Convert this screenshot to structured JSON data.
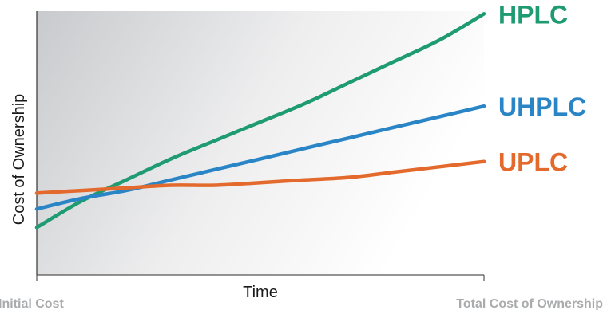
{
  "chart_data": {
    "type": "line",
    "title": "",
    "xlabel": "Time",
    "ylabel": "Cost of Ownership",
    "x_tick_labels": [
      "Initial Cost",
      "Total Cost of Ownership"
    ],
    "x": [
      0,
      0.1,
      0.2,
      0.3,
      0.4,
      0.5,
      0.6,
      0.7,
      0.8,
      0.9,
      1.0
    ],
    "xlim": [
      0,
      1
    ],
    "ylim": [
      0,
      1
    ],
    "y_ticks_shown": false,
    "grid": false,
    "legend": "series labels at right end of each line",
    "background": "vertical gradient: grey at left fading to white at right",
    "series": [
      {
        "name": "HPLC",
        "color": "#1f9b72",
        "values": [
          0.18,
          0.28,
          0.36,
          0.44,
          0.51,
          0.58,
          0.65,
          0.73,
          0.81,
          0.89,
          0.99
        ]
      },
      {
        "name": "UHPLC",
        "color": "#2a85c7",
        "values": [
          0.25,
          0.29,
          0.32,
          0.36,
          0.4,
          0.44,
          0.48,
          0.52,
          0.56,
          0.6,
          0.64
        ]
      },
      {
        "name": "UPLC",
        "color": "#e36a2c",
        "values": [
          0.31,
          0.32,
          0.33,
          0.34,
          0.34,
          0.35,
          0.36,
          0.37,
          0.39,
          0.41,
          0.43
        ]
      }
    ]
  }
}
